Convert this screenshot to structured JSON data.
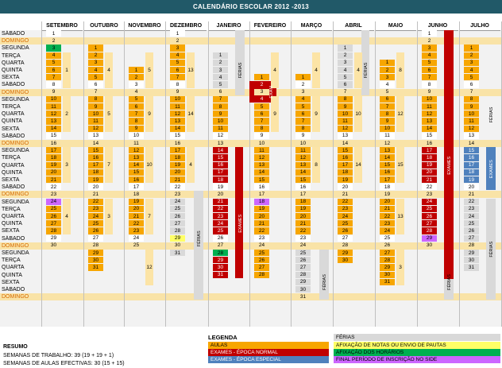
{
  "title": "CALENDÁRIO ESCOLAR 2012 -2013",
  "months": [
    "SETEMBRO",
    "OUTUBRO",
    "NOVEMBRO",
    "DEZEMBRO",
    "JANEIRO",
    "FEVEREIRO",
    "MARÇO",
    "ABRIL",
    "MAIO",
    "JUNHO",
    "JULHO"
  ],
  "row_labels": [
    "SÁBADO",
    "DOMINGO",
    "SEGUNDA",
    "TERÇA",
    "QUARTA",
    "QUINTA",
    "SEXTA",
    "SÁBADO",
    "DOMINGO",
    "SEGUNDA",
    "TERÇA",
    "QUARTA",
    "QUINTA",
    "SEXTA",
    "SÁBADO",
    "DOMINGO",
    "SEGUNDA",
    "TERÇA",
    "QUARTA",
    "QUINTA",
    "SEXTA",
    "SÁBADO",
    "DOMINGO",
    "SEGUNDA",
    "TERÇA",
    "QUARTA",
    "QUINTA",
    "SEXTA",
    "SÁBADO",
    "DOMINGO",
    "SEGUNDA",
    "TERÇA",
    "QUARTA",
    "QUINTA",
    "SEXTA",
    "SÁBADO",
    "DOMINGO"
  ],
  "calendar": {
    "SETEMBRO": [
      "1",
      "2",
      "3",
      "4",
      "5",
      "6",
      "7",
      "8",
      "9",
      "10",
      "11",
      "12",
      "13",
      "14",
      "15",
      "16",
      "17",
      "18",
      "19",
      "20",
      "21",
      "22",
      "23",
      "24",
      "25",
      "26",
      "27",
      "28",
      "29",
      "30",
      "",
      "",
      "",
      "",
      "",
      "",
      ""
    ],
    "OUTUBRO": [
      "",
      "",
      "1",
      "2",
      "3",
      "4",
      "5",
      "6",
      "7",
      "8",
      "9",
      "10",
      "11",
      "12",
      "13",
      "14",
      "15",
      "16",
      "17",
      "18",
      "19",
      "20",
      "21",
      "22",
      "23",
      "24",
      "25",
      "26",
      "27",
      "28",
      "29",
      "30",
      "31",
      "",
      "",
      "",
      ""
    ],
    "NOVEMBRO": [
      "",
      "",
      "",
      "",
      "",
      "1",
      "2",
      "3",
      "4",
      "5",
      "6",
      "7",
      "8",
      "9",
      "10",
      "11",
      "12",
      "13",
      "14",
      "15",
      "16",
      "17",
      "18",
      "19",
      "20",
      "21",
      "22",
      "23",
      "24",
      "25",
      "",
      "",
      "",
      "",
      "",
      "",
      ""
    ],
    "DEZEMBRO": [
      "1",
      "2",
      "3",
      "4",
      "5",
      "6",
      "7",
      "8",
      "9",
      "10",
      "11",
      "12",
      "13",
      "14",
      "15",
      "16",
      "17",
      "18",
      "19",
      "20",
      "21",
      "22",
      "23",
      "24",
      "25",
      "26",
      "27",
      "28",
      "29",
      "30",
      "31",
      "",
      "",
      "",
      "",
      "",
      ""
    ],
    "JANEIRO": [
      "",
      "",
      "",
      "1",
      "2",
      "3",
      "4",
      "5",
      "6",
      "7",
      "8",
      "9",
      "10",
      "11",
      "12",
      "13",
      "14",
      "15",
      "16",
      "17",
      "18",
      "19",
      "20",
      "21",
      "22",
      "23",
      "24",
      "25",
      "26",
      "27",
      "28",
      "29",
      "30",
      "31",
      "",
      "",
      ""
    ],
    "FEVEREIRO": [
      "",
      "",
      "",
      "",
      "",
      "",
      "1",
      "2",
      "3",
      "4",
      "5",
      "6",
      "7",
      "8",
      "9",
      "10",
      "11",
      "12",
      "13",
      "14",
      "15",
      "16",
      "17",
      "18",
      "19",
      "20",
      "21",
      "22",
      "23",
      "24",
      "25",
      "26",
      "27",
      "28",
      "",
      "",
      ""
    ],
    "MARÇO": [
      "",
      "",
      "",
      "",
      "",
      "",
      "1",
      "2",
      "3",
      "4",
      "5",
      "6",
      "7",
      "8",
      "9",
      "10",
      "11",
      "12",
      "13",
      "14",
      "15",
      "16",
      "17",
      "18",
      "19",
      "20",
      "21",
      "22",
      "23",
      "24",
      "25",
      "26",
      "27",
      "28",
      "29",
      "30",
      "31"
    ],
    "ABRIL": [
      "",
      "",
      "1",
      "2",
      "3",
      "4",
      "5",
      "6",
      "7",
      "8",
      "9",
      "10",
      "11",
      "12",
      "13",
      "14",
      "15",
      "16",
      "17",
      "18",
      "19",
      "20",
      "21",
      "22",
      "23",
      "24",
      "25",
      "26",
      "27",
      "28",
      "29",
      "30",
      "",
      "",
      "",
      "",
      ""
    ],
    "MAIO": [
      "",
      "",
      "",
      "",
      "1",
      "2",
      "3",
      "4",
      "5",
      "6",
      "7",
      "8",
      "9",
      "10",
      "11",
      "12",
      "13",
      "14",
      "15",
      "16",
      "17",
      "18",
      "19",
      "20",
      "21",
      "22",
      "23",
      "24",
      "25",
      "26",
      "27",
      "28",
      "29",
      "30",
      "31",
      "",
      ""
    ],
    "JUNHO": [
      "1",
      "2",
      "3",
      "4",
      "5",
      "6",
      "7",
      "8",
      "9",
      "10",
      "11",
      "12",
      "13",
      "14",
      "15",
      "16",
      "17",
      "18",
      "19",
      "20",
      "21",
      "22",
      "23",
      "24",
      "25",
      "26",
      "27",
      "28",
      "29",
      "30",
      "",
      "",
      "",
      "",
      "",
      "",
      ""
    ],
    "JULHO": [
      "",
      "",
      "1",
      "2",
      "3",
      "4",
      "5",
      "6",
      "7",
      "8",
      "9",
      "10",
      "11",
      "12",
      "13",
      "14",
      "15",
      "16",
      "17",
      "18",
      "19",
      "20",
      "21",
      "22",
      "23",
      "24",
      "25",
      "26",
      "27",
      "28",
      "29",
      "30",
      "31",
      "",
      "",
      "",
      ""
    ]
  },
  "week_counts": {
    "SETEMBRO": [
      "1",
      "2",
      "3",
      "4"
    ],
    "OUTUBRO": [
      "4",
      "5",
      "7",
      "3"
    ],
    "NOVEMBRO": [
      "5",
      "9",
      "10",
      "7",
      "12"
    ],
    "DEZEMBRO": [
      "13",
      "14",
      "4"
    ],
    "ABRIL": [
      "4",
      "10",
      "14"
    ],
    "MAIO": [
      "8",
      "12",
      "15",
      "13",
      "3"
    ],
    "MARÇO": [
      "4",
      "9",
      "8"
    ],
    "FEVEREIRO": [
      "4",
      "9"
    ]
  },
  "vertical_labels": {
    "ferias": "FÉRIAS",
    "exames": "EXAMES",
    "exam": "EXAM"
  },
  "legend": {
    "title": "LEGENDA",
    "items": [
      {
        "text": "AULAS",
        "color": "#f7a600"
      },
      {
        "text": "EXAMES - ÉPOCA NORMAL",
        "color": "#c00000"
      },
      {
        "text": "EXAMES - ÉPOCA ESPECIAL",
        "color": "#4f81bd"
      },
      {
        "text": "FÉRIAS",
        "color": "#d9d9d9"
      },
      {
        "text": "AFIXAÇÃO DE NOTAS OU ENVIO DE PAUTAS",
        "color": "#ffff66"
      },
      {
        "text": "AFIXAÇÃO DOS HORÁRIOS",
        "color": "#00b050"
      },
      {
        "text": "FINAL PERÍODO DE INSCRIÇÃO NO SIDE",
        "color": "#cc66ff"
      }
    ]
  },
  "resumo": {
    "title": "RESUMO",
    "line1": "SEMANAS DE TRABALHO: 39 (19 + 19 + 1)",
    "line2": "SEMANAS DE AULAS EFECTIVAS: 30 (15 + 15)"
  },
  "colors": {
    "header": "#215968",
    "aulas": "#f7a600",
    "exames_normal": "#c00000",
    "exames_especial": "#4f81bd",
    "ferias": "#d9d9d9",
    "domingo": "#f9e3a7",
    "notas": "#ffff66",
    "horarios": "#00b050",
    "side": "#cc66ff"
  }
}
